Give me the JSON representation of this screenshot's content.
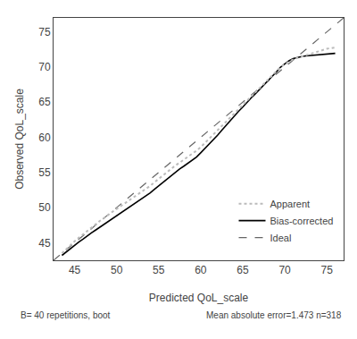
{
  "chart_data": {
    "type": "line",
    "xlabel": "Predicted QoL_scale",
    "ylabel": "Observed QoL_scale",
    "xlim": [
      42.5,
      77
    ],
    "ylim": [
      42.5,
      77
    ],
    "xticks": [
      45,
      50,
      55,
      60,
      65,
      70,
      75
    ],
    "yticks": [
      45,
      50,
      55,
      60,
      65,
      70,
      75
    ],
    "grid": false,
    "legend": "lower right",
    "annotations": [
      "B= 40 repetitions, boot",
      "Mean absolute error=1.473 n=318"
    ],
    "series": [
      {
        "name": "Apparent",
        "color": "#bbbbbb",
        "line_style": "dotted",
        "x": [
          43.5,
          44.0,
          44.5,
          45.0,
          45.5,
          46.0,
          46.5,
          47.0,
          47.5,
          48.0,
          48.5,
          49.0,
          49.5,
          50.0,
          50.5,
          51.0,
          51.5,
          52.0,
          52.5,
          53.0,
          53.5,
          54.0,
          54.5,
          55.0,
          55.5,
          56.0,
          56.5,
          57.0,
          57.5,
          58.0,
          58.5,
          59.0,
          59.5,
          60.0,
          60.5,
          61.0,
          61.5,
          62.0,
          62.5,
          63.0,
          63.5,
          64.0,
          64.5,
          65.0,
          65.5,
          66.0,
          66.5,
          67.0,
          67.5,
          68.0,
          68.5,
          69.0,
          69.5,
          70.0,
          70.5,
          71.0,
          71.5,
          72.0,
          72.5,
          73.0,
          73.5,
          74.0,
          74.5,
          75.0,
          75.5,
          76.0
        ],
        "values": [
          43.5,
          44.1,
          44.6,
          45.2,
          45.7,
          46.2,
          46.7,
          47.2,
          47.7,
          48.1,
          48.5,
          49.0,
          49.4,
          49.8,
          50.2,
          50.6,
          51.0,
          51.4,
          51.8,
          52.2,
          52.7,
          53.1,
          53.6,
          54.1,
          54.5,
          55.0,
          55.5,
          56.0,
          56.4,
          56.8,
          57.2,
          57.6,
          58.1,
          58.6,
          59.2,
          59.8,
          60.4,
          61.0,
          61.6,
          62.2,
          62.9,
          63.5,
          64.1,
          64.7,
          65.3,
          65.8,
          66.4,
          67.0,
          67.6,
          68.2,
          68.8,
          69.4,
          70.0,
          70.4,
          70.8,
          71.1,
          71.3,
          71.5,
          71.7,
          71.9,
          72.1,
          72.3,
          72.5,
          72.6,
          72.7,
          72.8
        ]
      },
      {
        "name": "Bias-corrected",
        "color": "#000000",
        "line_style": "solid",
        "x": [
          43.5,
          44.0,
          44.5,
          45.0,
          45.5,
          46.0,
          46.5,
          47.0,
          47.5,
          48.0,
          48.5,
          49.0,
          49.5,
          50.0,
          50.5,
          51.0,
          51.5,
          52.0,
          52.5,
          53.0,
          53.5,
          54.0,
          54.5,
          55.0,
          55.5,
          56.0,
          56.5,
          57.0,
          57.5,
          58.0,
          58.5,
          59.0,
          59.5,
          60.0,
          60.5,
          61.0,
          61.5,
          62.0,
          62.5,
          63.0,
          63.5,
          64.0,
          64.5,
          65.0,
          65.5,
          66.0,
          66.5,
          67.0,
          67.5,
          68.0,
          68.5,
          69.0,
          69.5,
          70.0,
          70.5,
          71.0,
          71.5,
          72.0,
          72.5,
          73.0,
          73.5,
          74.0,
          74.5,
          75.0,
          75.5,
          76.0
        ],
        "values": [
          43.2,
          43.7,
          44.2,
          44.7,
          45.1,
          45.5,
          46.0,
          46.4,
          46.8,
          47.2,
          47.6,
          48.0,
          48.4,
          48.8,
          49.2,
          49.6,
          50.0,
          50.4,
          50.8,
          51.2,
          51.7,
          52.1,
          52.6,
          53.1,
          53.6,
          54.1,
          54.6,
          55.1,
          55.5,
          55.9,
          56.3,
          56.7,
          57.2,
          57.8,
          58.4,
          59.0,
          59.6,
          60.3,
          61.0,
          61.7,
          62.4,
          63.0,
          63.7,
          64.3,
          65.0,
          65.6,
          66.2,
          66.8,
          67.4,
          68.0,
          68.6,
          69.3,
          70.0,
          70.5,
          70.9,
          71.2,
          71.4,
          71.5,
          71.6,
          71.65,
          71.7,
          71.75,
          71.8,
          71.85,
          71.9,
          71.95
        ]
      },
      {
        "name": "Ideal",
        "color": "#666666",
        "line_style": "dashed",
        "x": [
          42.5,
          77
        ],
        "values": [
          42.5,
          77
        ]
      }
    ]
  }
}
